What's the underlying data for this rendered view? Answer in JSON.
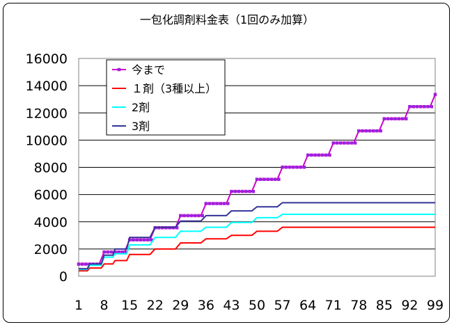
{
  "chart_data": {
    "type": "line",
    "title": "一包化調剤料金表（1回のみ加算）",
    "xlabel": "",
    "ylabel": "",
    "xlim": [
      1,
      99
    ],
    "ylim": [
      0,
      16000
    ],
    "y_ticks": [
      "0",
      "2000",
      "4000",
      "6000",
      "8000",
      "10000",
      "12000",
      "14000",
      "16000"
    ],
    "x_ticks": [
      1,
      8,
      15,
      22,
      29,
      36,
      43,
      50,
      57,
      64,
      71,
      78,
      85,
      92,
      99
    ],
    "grid": true,
    "legend_position": "top-left",
    "series": [
      {
        "name": "今まで",
        "color": "#cc00cc",
        "marker": "square",
        "steps": [
          [
            1,
            890
          ],
          [
            8,
            1780
          ],
          [
            15,
            2670
          ],
          [
            22,
            3560
          ],
          [
            29,
            4450
          ],
          [
            36,
            5340
          ],
          [
            43,
            6230
          ],
          [
            50,
            7120
          ],
          [
            57,
            8010
          ],
          [
            64,
            8900
          ],
          [
            71,
            9790
          ],
          [
            78,
            10680
          ],
          [
            85,
            11570
          ],
          [
            92,
            12460
          ],
          [
            99,
            13350
          ]
        ]
      },
      {
        "name": "１剤（3種以上）",
        "color": "#ff0000",
        "marker": "none",
        "steps": [
          [
            1,
            400
          ],
          [
            4,
            600
          ],
          [
            8,
            900
          ],
          [
            11,
            1150
          ],
          [
            15,
            1600
          ],
          [
            22,
            2000
          ],
          [
            29,
            2450
          ],
          [
            36,
            2750
          ],
          [
            43,
            3000
          ],
          [
            50,
            3300
          ],
          [
            57,
            3600
          ],
          [
            99,
            3600
          ]
        ]
      },
      {
        "name": "2剤",
        "color": "#00ffff",
        "marker": "none",
        "steps": [
          [
            1,
            500
          ],
          [
            4,
            800
          ],
          [
            8,
            1400
          ],
          [
            11,
            1650
          ],
          [
            15,
            2300
          ],
          [
            22,
            2850
          ],
          [
            29,
            3300
          ],
          [
            36,
            3600
          ],
          [
            43,
            3950
          ],
          [
            50,
            4300
          ],
          [
            57,
            4550
          ],
          [
            99,
            4550
          ]
        ]
      },
      {
        "name": "3剤",
        "color": "#333399",
        "marker": "none",
        "steps": [
          [
            1,
            550
          ],
          [
            4,
            900
          ],
          [
            8,
            1550
          ],
          [
            11,
            2000
          ],
          [
            15,
            2850
          ],
          [
            22,
            3600
          ],
          [
            29,
            4050
          ],
          [
            36,
            4450
          ],
          [
            43,
            4800
          ],
          [
            50,
            5100
          ],
          [
            57,
            5400
          ],
          [
            99,
            5400
          ]
        ]
      }
    ]
  }
}
